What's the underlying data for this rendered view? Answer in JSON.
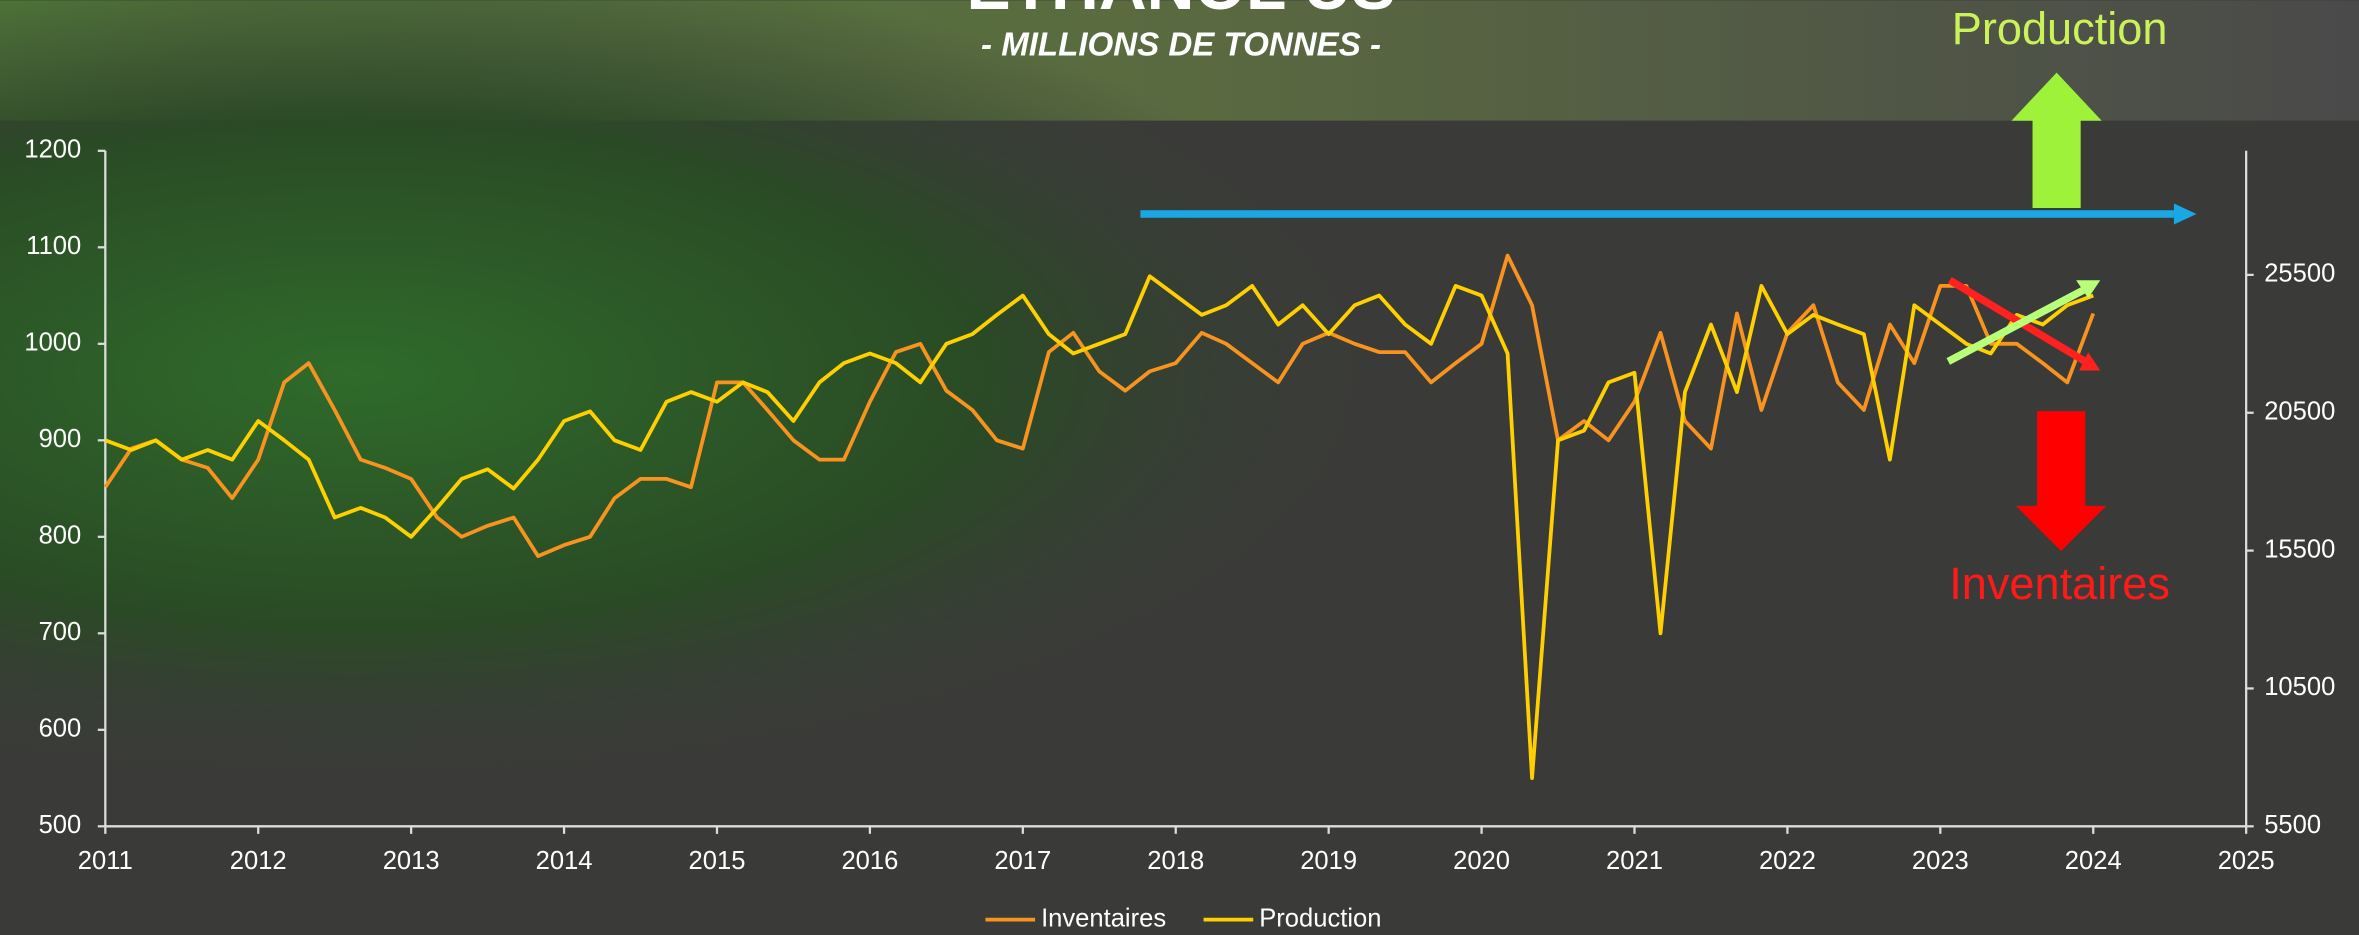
{
  "chart_data": {
    "type": "line",
    "title": "ETHANOL US",
    "subtitle": "- MILLIONS DE TONNES -",
    "annotations": [
      "Production",
      "Inventaires"
    ],
    "x": [
      2011,
      2011.17,
      2011.33,
      2011.5,
      2011.67,
      2011.83,
      2012,
      2012.17,
      2012.33,
      2012.5,
      2012.67,
      2012.83,
      2013,
      2013.17,
      2013.33,
      2013.5,
      2013.67,
      2013.83,
      2014,
      2014.17,
      2014.33,
      2014.5,
      2014.67,
      2014.83,
      2015,
      2015.17,
      2015.33,
      2015.5,
      2015.67,
      2015.83,
      2016,
      2016.17,
      2016.33,
      2016.5,
      2016.67,
      2016.83,
      2017,
      2017.17,
      2017.33,
      2017.5,
      2017.67,
      2017.83,
      2018,
      2018.17,
      2018.33,
      2018.5,
      2018.67,
      2018.83,
      2019,
      2019.17,
      2019.33,
      2019.5,
      2019.67,
      2019.83,
      2020,
      2020.17,
      2020.33,
      2020.5,
      2020.67,
      2020.83,
      2021,
      2021.17,
      2021.33,
      2021.5,
      2021.67,
      2021.83,
      2022,
      2022.17,
      2022.33,
      2022.5,
      2022.67,
      2022.83,
      2023,
      2023.17,
      2023.33,
      2023.5,
      2023.67,
      2023.83,
      2024
    ],
    "series": [
      {
        "name": "Inventaires",
        "color": "#f7931e",
        "axis": "y2",
        "values": [
          17800,
          19200,
          19500,
          18800,
          18500,
          17400,
          18800,
          21600,
          22300,
          20600,
          18800,
          18500,
          18100,
          16700,
          16000,
          16400,
          16700,
          15300,
          15700,
          16000,
          17400,
          18100,
          18100,
          17800,
          21600,
          21600,
          20600,
          19500,
          18800,
          18800,
          20900,
          22700,
          23000,
          21300,
          20600,
          19500,
          19200,
          22700,
          23400,
          22000,
          21300,
          22000,
          22300,
          23400,
          23000,
          22300,
          21600,
          23000,
          23400,
          23000,
          22700,
          22700,
          21600,
          22300,
          23000,
          26200,
          24400,
          19500,
          20200,
          19500,
          20900,
          23400,
          20200,
          19200,
          24100,
          20600,
          23400,
          24400,
          21600,
          20600,
          23700,
          22300,
          25100,
          25100,
          23000,
          23000,
          22300,
          21600,
          24100
        ]
      },
      {
        "name": "Production",
        "color": "#ffd000",
        "values": [
          900,
          890,
          900,
          880,
          890,
          880,
          920,
          900,
          880,
          820,
          830,
          820,
          800,
          830,
          860,
          870,
          850,
          880,
          920,
          930,
          900,
          890,
          940,
          950,
          940,
          960,
          950,
          920,
          960,
          980,
          990,
          980,
          960,
          1000,
          1010,
          1030,
          1050,
          1010,
          990,
          1000,
          1010,
          1070,
          1050,
          1030,
          1040,
          1060,
          1020,
          1040,
          1010,
          1040,
          1050,
          1020,
          1000,
          1060,
          1050,
          990,
          550,
          900,
          910,
          960,
          970,
          700,
          950,
          1020,
          950,
          1060,
          1010,
          1030,
          1020,
          1010,
          880,
          1040,
          1020,
          1000,
          990,
          1030,
          1020,
          1040,
          1050
        ]
      }
    ],
    "xlim": [
      2011,
      2025
    ],
    "xticks": [
      2011,
      2012,
      2013,
      2014,
      2015,
      2016,
      2017,
      2018,
      2019,
      2020,
      2021,
      2022,
      2023,
      2024,
      2025
    ],
    "ylim": [
      500,
      1200
    ],
    "yticks": [
      500,
      600,
      700,
      800,
      900,
      1000,
      1100,
      1200
    ],
    "y2lim": [
      5500,
      30000
    ],
    "y2ticks": [
      5500,
      10500,
      15500,
      20500,
      25500
    ]
  }
}
